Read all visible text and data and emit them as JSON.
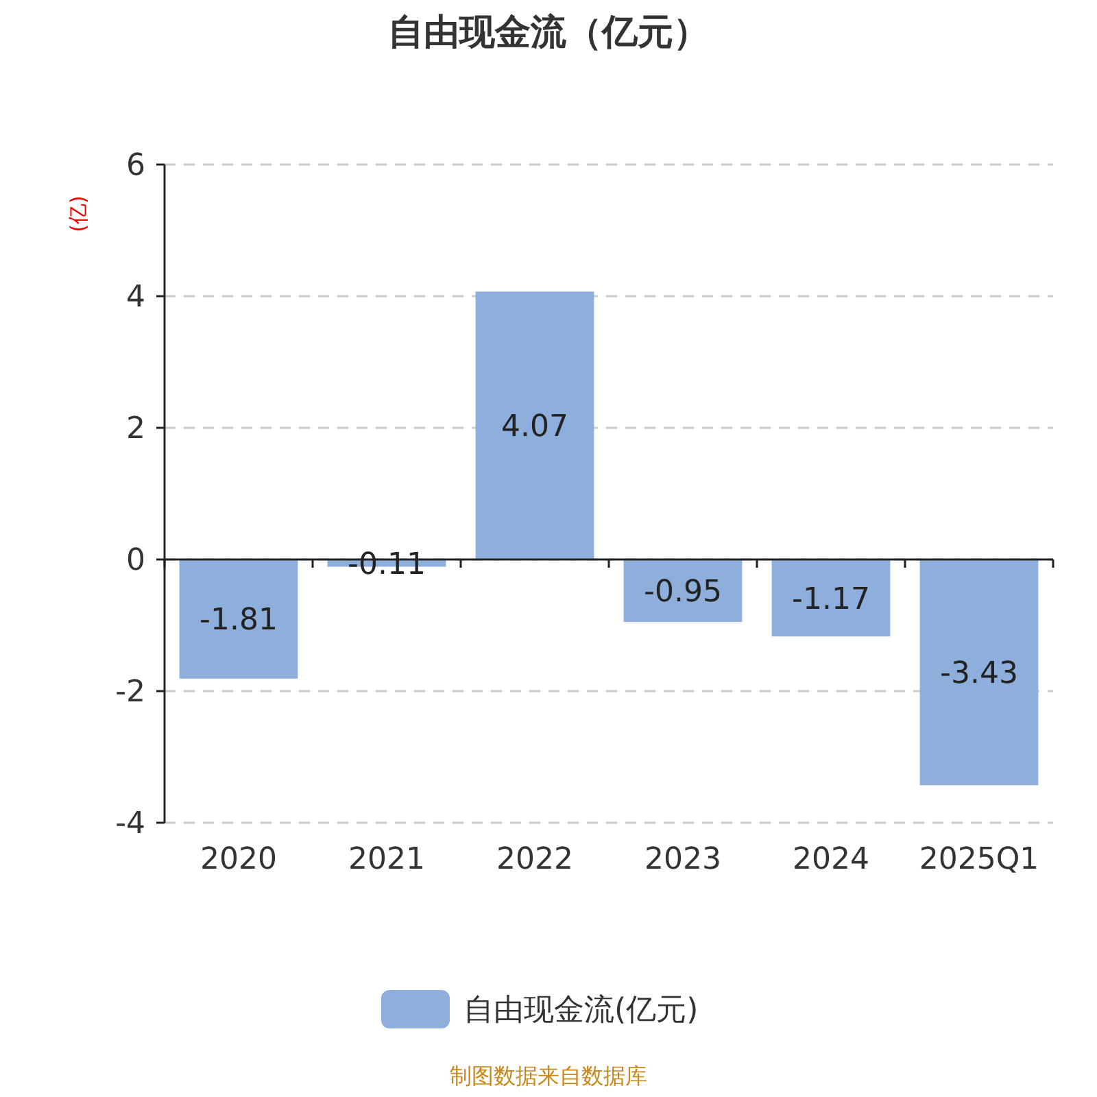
{
  "chart_data": {
    "type": "bar",
    "title": "自由现金流（亿元）",
    "ylabel": "(亿)",
    "categories": [
      "2020",
      "2021",
      "2022",
      "2023",
      "2024",
      "2025Q1"
    ],
    "series": [
      {
        "name": "自由现金流(亿元)",
        "color": "#8eaedb",
        "values": [
          -1.81,
          -0.11,
          4.07,
          -0.95,
          -1.17,
          -3.43
        ]
      }
    ],
    "ylim": [
      -4,
      6
    ],
    "yticks": [
      -4,
      -2,
      0,
      2,
      4,
      6
    ],
    "grid": "y",
    "legend": "bottom",
    "data_labels": true,
    "annotations": [
      "制图数据来自数据库"
    ]
  }
}
